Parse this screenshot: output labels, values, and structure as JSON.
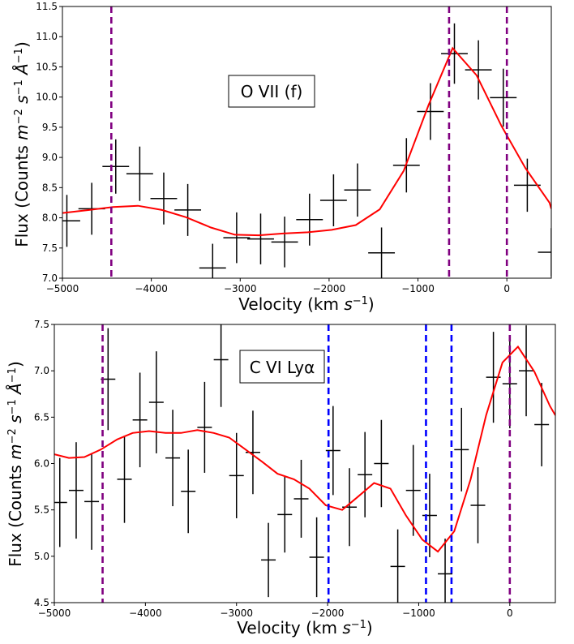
{
  "chart_data": [
    {
      "type": "scatter",
      "label_text": "O VII (f)",
      "xlabel": "Velocity (km s⁻¹)",
      "ylabel": "Flux (Counts m⁻² s⁻¹ Å⁻¹)",
      "xlim": [
        -5000,
        500
      ],
      "ylim": [
        7.0,
        11.5
      ],
      "xticks": [
        -5000,
        -4000,
        -3000,
        -2000,
        -1000,
        0
      ],
      "xtick_labels": [
        "−5000",
        "−4000",
        "−3000",
        "−2000",
        "−1000",
        "0"
      ],
      "yticks": [
        7.0,
        7.5,
        8.0,
        8.5,
        9.0,
        9.5,
        10.0,
        10.5,
        11.0,
        11.5
      ],
      "ytick_labels": [
        "7.0",
        "7.5",
        "8.0",
        "8.5",
        "9.0",
        "9.5",
        "10.0",
        "10.5",
        "11.0",
        "11.5"
      ],
      "data_points": [
        {
          "x": -4950,
          "y": 7.95,
          "xerr": 150,
          "yerr": 0.43
        },
        {
          "x": -4670,
          "y": 8.15,
          "xerr": 150,
          "yerr": 0.43
        },
        {
          "x": -4400,
          "y": 8.85,
          "xerr": 150,
          "yerr": 0.45
        },
        {
          "x": -4130,
          "y": 8.73,
          "xerr": 150,
          "yerr": 0.45
        },
        {
          "x": -3860,
          "y": 8.32,
          "xerr": 150,
          "yerr": 0.43
        },
        {
          "x": -3590,
          "y": 8.13,
          "xerr": 150,
          "yerr": 0.43
        },
        {
          "x": -3310,
          "y": 7.17,
          "xerr": 150,
          "yerr": 0.4
        },
        {
          "x": -3040,
          "y": 7.67,
          "xerr": 150,
          "yerr": 0.42
        },
        {
          "x": -2770,
          "y": 7.65,
          "xerr": 150,
          "yerr": 0.42
        },
        {
          "x": -2500,
          "y": 7.6,
          "xerr": 150,
          "yerr": 0.42
        },
        {
          "x": -2220,
          "y": 7.97,
          "xerr": 150,
          "yerr": 0.43
        },
        {
          "x": -1950,
          "y": 8.29,
          "xerr": 150,
          "yerr": 0.43
        },
        {
          "x": -1680,
          "y": 8.46,
          "xerr": 150,
          "yerr": 0.44
        },
        {
          "x": -1410,
          "y": 7.42,
          "xerr": 150,
          "yerr": 0.42
        },
        {
          "x": -1130,
          "y": 8.87,
          "xerr": 150,
          "yerr": 0.45
        },
        {
          "x": -860,
          "y": 9.76,
          "xerr": 150,
          "yerr": 0.47
        },
        {
          "x": -590,
          "y": 10.72,
          "xerr": 150,
          "yerr": 0.5
        },
        {
          "x": -320,
          "y": 10.45,
          "xerr": 150,
          "yerr": 0.49
        },
        {
          "x": -40,
          "y": 9.99,
          "xerr": 150,
          "yerr": 0.48
        },
        {
          "x": 230,
          "y": 8.54,
          "xerr": 150,
          "yerr": 0.44
        },
        {
          "x": 500,
          "y": 7.43,
          "xerr": 150,
          "yerr": 0.4
        }
      ],
      "model_line": {
        "color": "#ff0000",
        "x": [
          -5000,
          -4700,
          -4430,
          -4150,
          -3880,
          -3610,
          -3330,
          -3060,
          -2790,
          -2520,
          -2240,
          -1970,
          -1700,
          -1430,
          -1160,
          -880,
          -610,
          -340,
          -60,
          210,
          480,
          500
        ],
        "y": [
          8.08,
          8.13,
          8.18,
          8.2,
          8.13,
          8.01,
          7.84,
          7.72,
          7.71,
          7.74,
          7.76,
          7.8,
          7.88,
          8.14,
          8.78,
          9.87,
          10.81,
          10.36,
          9.52,
          8.82,
          8.25,
          8.15
        ]
      },
      "vlines": [
        {
          "x": -4450,
          "color": "#800080"
        },
        {
          "x": -650,
          "color": "#800080"
        },
        {
          "x": 0,
          "color": "#800080"
        }
      ]
    },
    {
      "type": "scatter",
      "label_text": "C VI Lyα",
      "xlabel": "Velocity (km s⁻¹)",
      "ylabel": "Flux (Counts m⁻² s⁻¹ Å⁻¹)",
      "xlim": [
        -5000,
        500
      ],
      "ylim": [
        4.5,
        7.5
      ],
      "xticks": [
        -5000,
        -4000,
        -3000,
        -2000,
        -1000,
        0
      ],
      "xtick_labels": [
        "−5000",
        "−4000",
        "−3000",
        "−2000",
        "−1000",
        "0"
      ],
      "yticks": [
        4.5,
        5.0,
        5.5,
        6.0,
        6.5,
        7.0,
        7.5
      ],
      "ytick_labels": [
        "4.5",
        "5.0",
        "5.5",
        "6.0",
        "6.5",
        "7.0",
        "7.5"
      ],
      "data_points": [
        {
          "x": -4940,
          "y": 5.58,
          "xerr": 80,
          "yerr": 0.48
        },
        {
          "x": -4760,
          "y": 5.71,
          "xerr": 80,
          "yerr": 0.52
        },
        {
          "x": -4590,
          "y": 5.59,
          "xerr": 80,
          "yerr": 0.52
        },
        {
          "x": -4410,
          "y": 6.91,
          "xerr": 80,
          "yerr": 0.55
        },
        {
          "x": -4230,
          "y": 5.83,
          "xerr": 80,
          "yerr": 0.47
        },
        {
          "x": -4060,
          "y": 6.47,
          "xerr": 80,
          "yerr": 0.51
        },
        {
          "x": -3880,
          "y": 6.66,
          "xerr": 80,
          "yerr": 0.55
        },
        {
          "x": -3700,
          "y": 6.06,
          "xerr": 80,
          "yerr": 0.52
        },
        {
          "x": -3530,
          "y": 5.7,
          "xerr": 80,
          "yerr": 0.45
        },
        {
          "x": -3350,
          "y": 6.39,
          "xerr": 80,
          "yerr": 0.49
        },
        {
          "x": -3170,
          "y": 7.12,
          "xerr": 80,
          "yerr": 0.51
        },
        {
          "x": -3000,
          "y": 5.87,
          "xerr": 80,
          "yerr": 0.46
        },
        {
          "x": -2820,
          "y": 6.12,
          "xerr": 80,
          "yerr": 0.45
        },
        {
          "x": -2650,
          "y": 4.96,
          "xerr": 80,
          "yerr": 0.4
        },
        {
          "x": -2470,
          "y": 5.45,
          "xerr": 80,
          "yerr": 0.41
        },
        {
          "x": -2290,
          "y": 5.62,
          "xerr": 80,
          "yerr": 0.42
        },
        {
          "x": -2120,
          "y": 4.99,
          "xerr": 80,
          "yerr": 0.43
        },
        {
          "x": -1940,
          "y": 6.14,
          "xerr": 80,
          "yerr": 0.48
        },
        {
          "x": -1760,
          "y": 5.53,
          "xerr": 80,
          "yerr": 0.42
        },
        {
          "x": -1590,
          "y": 5.88,
          "xerr": 80,
          "yerr": 0.46
        },
        {
          "x": -1410,
          "y": 6.0,
          "xerr": 80,
          "yerr": 0.47
        },
        {
          "x": -1230,
          "y": 4.89,
          "xerr": 80,
          "yerr": 0.4
        },
        {
          "x": -1060,
          "y": 5.71,
          "xerr": 80,
          "yerr": 0.49
        },
        {
          "x": -880,
          "y": 5.44,
          "xerr": 80,
          "yerr": 0.45
        },
        {
          "x": -710,
          "y": 4.81,
          "xerr": 80,
          "yerr": 0.38
        },
        {
          "x": -530,
          "y": 6.15,
          "xerr": 80,
          "yerr": 0.45
        },
        {
          "x": -350,
          "y": 5.55,
          "xerr": 80,
          "yerr": 0.41
        },
        {
          "x": -180,
          "y": 6.93,
          "xerr": 80,
          "yerr": 0.49
        },
        {
          "x": 0,
          "y": 6.86,
          "xerr": 80,
          "yerr": 0.48
        },
        {
          "x": 180,
          "y": 7.0,
          "xerr": 80,
          "yerr": 0.49
        },
        {
          "x": 350,
          "y": 6.42,
          "xerr": 80,
          "yerr": 0.45
        }
      ],
      "model_line": {
        "color": "#ff0000",
        "x": [
          -5000,
          -4840,
          -4670,
          -4490,
          -4310,
          -4140,
          -3960,
          -3780,
          -3610,
          -3430,
          -3250,
          -3080,
          -2900,
          -2720,
          -2550,
          -2370,
          -2200,
          -2020,
          -1840,
          -1670,
          -1490,
          -1310,
          -1140,
          -960,
          -790,
          -610,
          -430,
          -260,
          -80,
          90,
          270,
          440,
          500
        ],
        "y": [
          6.1,
          6.06,
          6.07,
          6.15,
          6.26,
          6.33,
          6.35,
          6.33,
          6.33,
          6.36,
          6.33,
          6.28,
          6.15,
          6.02,
          5.89,
          5.83,
          5.73,
          5.55,
          5.5,
          5.64,
          5.79,
          5.73,
          5.44,
          5.18,
          5.05,
          5.27,
          5.83,
          6.52,
          7.09,
          7.26,
          6.99,
          6.62,
          6.52
        ]
      },
      "vlines": [
        {
          "x": -4470,
          "color": "#800080"
        },
        {
          "x": -1990,
          "color": "#0000ff"
        },
        {
          "x": -920,
          "color": "#0000ff"
        },
        {
          "x": -640,
          "color": "#0000ff"
        },
        {
          "x": 0,
          "color": "#800080"
        }
      ]
    }
  ]
}
